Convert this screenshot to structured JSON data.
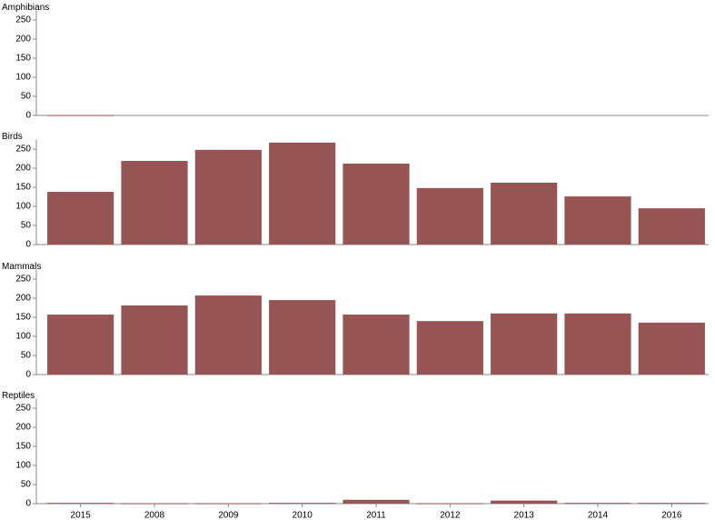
{
  "chart_data": {
    "type": "bar",
    "categories": [
      "2015",
      "2008",
      "2009",
      "2010",
      "2011",
      "2012",
      "2013",
      "2014",
      "2016"
    ],
    "series": [
      {
        "name": "Amphibians",
        "color": "#975454",
        "values": [
          1,
          null,
          null,
          null,
          null,
          null,
          null,
          null,
          null
        ]
      },
      {
        "name": "Birds",
        "color": "#975454",
        "values": [
          138,
          219,
          248,
          267,
          212,
          148,
          162,
          126,
          95
        ]
      },
      {
        "name": "Mammals",
        "color": "#975454",
        "values": [
          157,
          181,
          207,
          195,
          157,
          140,
          160,
          160,
          136
        ]
      },
      {
        "name": "Reptiles",
        "color": "#975454",
        "values": [
          2,
          1,
          1,
          2,
          10,
          1,
          8,
          2,
          2
        ]
      }
    ],
    "ylim": [
      0,
      275
    ],
    "yticks": [
      0,
      50,
      100,
      150,
      200,
      250
    ]
  }
}
